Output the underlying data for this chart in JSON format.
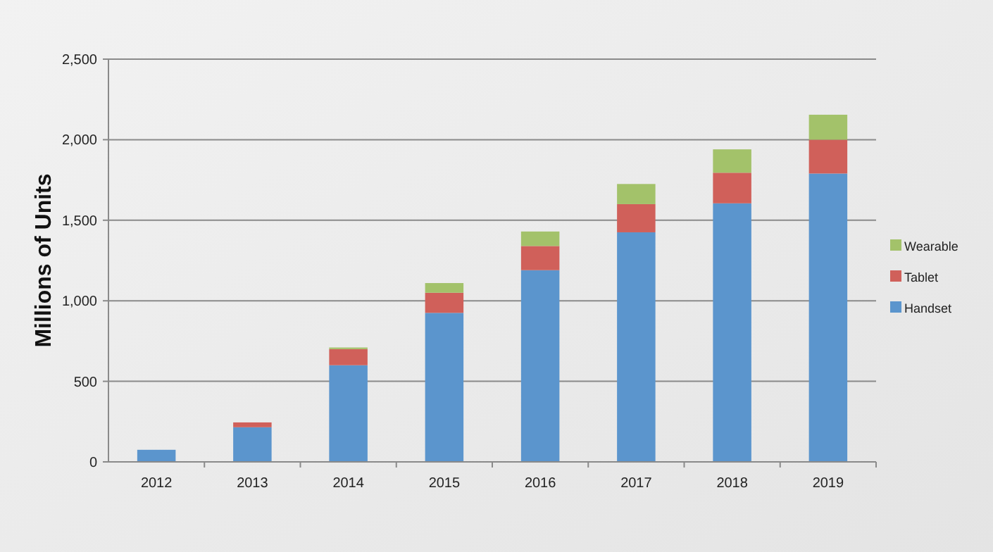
{
  "chart_data": {
    "type": "bar",
    "stacked": true,
    "ylabel": "Millions of Units",
    "categories": [
      "2012",
      "2013",
      "2014",
      "2015",
      "2016",
      "2017",
      "2018",
      "2019"
    ],
    "series": [
      {
        "name": "Handset",
        "color": "#5b95cd",
        "values": [
          75,
          215,
          600,
          925,
          1190,
          1425,
          1605,
          1790
        ]
      },
      {
        "name": "Tablet",
        "color": "#d0605a",
        "values": [
          0,
          30,
          100,
          125,
          150,
          175,
          190,
          210
        ]
      },
      {
        "name": "Wearable",
        "color": "#a3c26a",
        "values": [
          0,
          0,
          10,
          60,
          90,
          125,
          145,
          155
        ]
      }
    ],
    "ylim": [
      0,
      2500
    ],
    "yticks": [
      {
        "value": 0,
        "label": "0"
      },
      {
        "value": 500,
        "label": "500"
      },
      {
        "value": 1000,
        "label": "1,000"
      },
      {
        "value": 1500,
        "label": "1,500"
      },
      {
        "value": 2000,
        "label": "2,000"
      },
      {
        "value": 2500,
        "label": "2,500"
      }
    ],
    "grid": "y",
    "legend": "right"
  }
}
